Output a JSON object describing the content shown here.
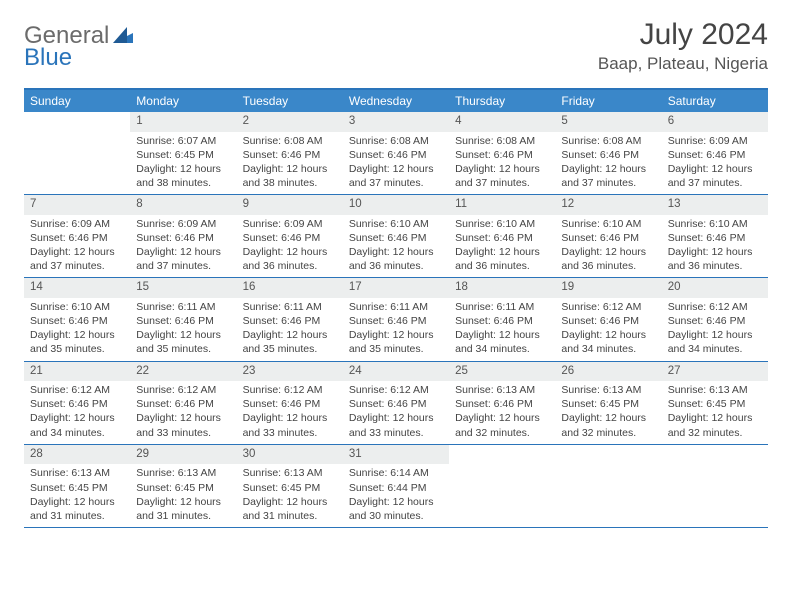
{
  "logo": {
    "left": "General",
    "right": "Blue"
  },
  "title": "July 2024",
  "location": "Baap, Plateau, Nigeria",
  "colors": {
    "accent": "#3a87c9",
    "border": "#2a74ba",
    "grey": "#eceeee"
  },
  "day_names": [
    "Sunday",
    "Monday",
    "Tuesday",
    "Wednesday",
    "Thursday",
    "Friday",
    "Saturday"
  ],
  "weeks": [
    [
      {
        "n": "",
        "l1": "",
        "l2": "",
        "l3": "",
        "l4": "",
        "empty": true
      },
      {
        "n": "1",
        "l1": "Sunrise: 6:07 AM",
        "l2": "Sunset: 6:45 PM",
        "l3": "Daylight: 12 hours",
        "l4": "and 38 minutes."
      },
      {
        "n": "2",
        "l1": "Sunrise: 6:08 AM",
        "l2": "Sunset: 6:46 PM",
        "l3": "Daylight: 12 hours",
        "l4": "and 38 minutes."
      },
      {
        "n": "3",
        "l1": "Sunrise: 6:08 AM",
        "l2": "Sunset: 6:46 PM",
        "l3": "Daylight: 12 hours",
        "l4": "and 37 minutes."
      },
      {
        "n": "4",
        "l1": "Sunrise: 6:08 AM",
        "l2": "Sunset: 6:46 PM",
        "l3": "Daylight: 12 hours",
        "l4": "and 37 minutes."
      },
      {
        "n": "5",
        "l1": "Sunrise: 6:08 AM",
        "l2": "Sunset: 6:46 PM",
        "l3": "Daylight: 12 hours",
        "l4": "and 37 minutes."
      },
      {
        "n": "6",
        "l1": "Sunrise: 6:09 AM",
        "l2": "Sunset: 6:46 PM",
        "l3": "Daylight: 12 hours",
        "l4": "and 37 minutes."
      }
    ],
    [
      {
        "n": "7",
        "l1": "Sunrise: 6:09 AM",
        "l2": "Sunset: 6:46 PM",
        "l3": "Daylight: 12 hours",
        "l4": "and 37 minutes."
      },
      {
        "n": "8",
        "l1": "Sunrise: 6:09 AM",
        "l2": "Sunset: 6:46 PM",
        "l3": "Daylight: 12 hours",
        "l4": "and 37 minutes."
      },
      {
        "n": "9",
        "l1": "Sunrise: 6:09 AM",
        "l2": "Sunset: 6:46 PM",
        "l3": "Daylight: 12 hours",
        "l4": "and 36 minutes."
      },
      {
        "n": "10",
        "l1": "Sunrise: 6:10 AM",
        "l2": "Sunset: 6:46 PM",
        "l3": "Daylight: 12 hours",
        "l4": "and 36 minutes."
      },
      {
        "n": "11",
        "l1": "Sunrise: 6:10 AM",
        "l2": "Sunset: 6:46 PM",
        "l3": "Daylight: 12 hours",
        "l4": "and 36 minutes."
      },
      {
        "n": "12",
        "l1": "Sunrise: 6:10 AM",
        "l2": "Sunset: 6:46 PM",
        "l3": "Daylight: 12 hours",
        "l4": "and 36 minutes."
      },
      {
        "n": "13",
        "l1": "Sunrise: 6:10 AM",
        "l2": "Sunset: 6:46 PM",
        "l3": "Daylight: 12 hours",
        "l4": "and 36 minutes."
      }
    ],
    [
      {
        "n": "14",
        "l1": "Sunrise: 6:10 AM",
        "l2": "Sunset: 6:46 PM",
        "l3": "Daylight: 12 hours",
        "l4": "and 35 minutes."
      },
      {
        "n": "15",
        "l1": "Sunrise: 6:11 AM",
        "l2": "Sunset: 6:46 PM",
        "l3": "Daylight: 12 hours",
        "l4": "and 35 minutes."
      },
      {
        "n": "16",
        "l1": "Sunrise: 6:11 AM",
        "l2": "Sunset: 6:46 PM",
        "l3": "Daylight: 12 hours",
        "l4": "and 35 minutes."
      },
      {
        "n": "17",
        "l1": "Sunrise: 6:11 AM",
        "l2": "Sunset: 6:46 PM",
        "l3": "Daylight: 12 hours",
        "l4": "and 35 minutes."
      },
      {
        "n": "18",
        "l1": "Sunrise: 6:11 AM",
        "l2": "Sunset: 6:46 PM",
        "l3": "Daylight: 12 hours",
        "l4": "and 34 minutes."
      },
      {
        "n": "19",
        "l1": "Sunrise: 6:12 AM",
        "l2": "Sunset: 6:46 PM",
        "l3": "Daylight: 12 hours",
        "l4": "and 34 minutes."
      },
      {
        "n": "20",
        "l1": "Sunrise: 6:12 AM",
        "l2": "Sunset: 6:46 PM",
        "l3": "Daylight: 12 hours",
        "l4": "and 34 minutes."
      }
    ],
    [
      {
        "n": "21",
        "l1": "Sunrise: 6:12 AM",
        "l2": "Sunset: 6:46 PM",
        "l3": "Daylight: 12 hours",
        "l4": "and 34 minutes."
      },
      {
        "n": "22",
        "l1": "Sunrise: 6:12 AM",
        "l2": "Sunset: 6:46 PM",
        "l3": "Daylight: 12 hours",
        "l4": "and 33 minutes."
      },
      {
        "n": "23",
        "l1": "Sunrise: 6:12 AM",
        "l2": "Sunset: 6:46 PM",
        "l3": "Daylight: 12 hours",
        "l4": "and 33 minutes."
      },
      {
        "n": "24",
        "l1": "Sunrise: 6:12 AM",
        "l2": "Sunset: 6:46 PM",
        "l3": "Daylight: 12 hours",
        "l4": "and 33 minutes."
      },
      {
        "n": "25",
        "l1": "Sunrise: 6:13 AM",
        "l2": "Sunset: 6:46 PM",
        "l3": "Daylight: 12 hours",
        "l4": "and 32 minutes."
      },
      {
        "n": "26",
        "l1": "Sunrise: 6:13 AM",
        "l2": "Sunset: 6:45 PM",
        "l3": "Daylight: 12 hours",
        "l4": "and 32 minutes."
      },
      {
        "n": "27",
        "l1": "Sunrise: 6:13 AM",
        "l2": "Sunset: 6:45 PM",
        "l3": "Daylight: 12 hours",
        "l4": "and 32 minutes."
      }
    ],
    [
      {
        "n": "28",
        "l1": "Sunrise: 6:13 AM",
        "l2": "Sunset: 6:45 PM",
        "l3": "Daylight: 12 hours",
        "l4": "and 31 minutes."
      },
      {
        "n": "29",
        "l1": "Sunrise: 6:13 AM",
        "l2": "Sunset: 6:45 PM",
        "l3": "Daylight: 12 hours",
        "l4": "and 31 minutes."
      },
      {
        "n": "30",
        "l1": "Sunrise: 6:13 AM",
        "l2": "Sunset: 6:45 PM",
        "l3": "Daylight: 12 hours",
        "l4": "and 31 minutes."
      },
      {
        "n": "31",
        "l1": "Sunrise: 6:14 AM",
        "l2": "Sunset: 6:44 PM",
        "l3": "Daylight: 12 hours",
        "l4": "and 30 minutes."
      },
      {
        "n": "",
        "l1": "",
        "l2": "",
        "l3": "",
        "l4": "",
        "empty": true
      },
      {
        "n": "",
        "l1": "",
        "l2": "",
        "l3": "",
        "l4": "",
        "empty": true
      },
      {
        "n": "",
        "l1": "",
        "l2": "",
        "l3": "",
        "l4": "",
        "empty": true
      }
    ]
  ]
}
